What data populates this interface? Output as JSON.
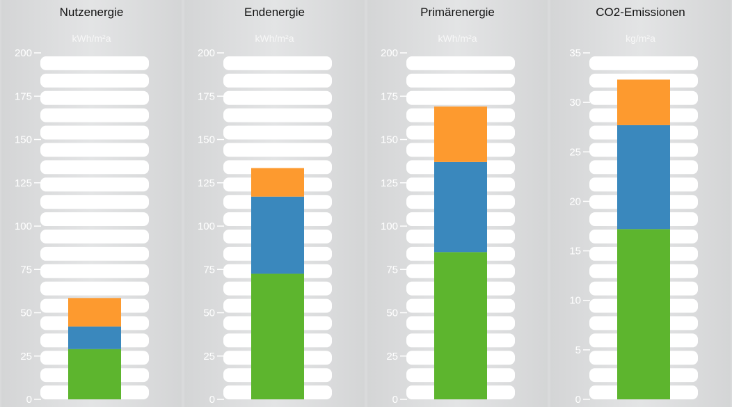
{
  "chart_data": [
    {
      "type": "bar",
      "stacked": true,
      "title": "Nutzenergie",
      "unit": "kWh/m²a",
      "ylim": [
        0,
        200
      ],
      "yticks": [
        "0",
        "25",
        "50",
        "75",
        "100",
        "125",
        "150",
        "175",
        "200"
      ],
      "segments": [
        {
          "value": 29,
          "color": "#5db52e"
        },
        {
          "value": 13,
          "color": "#3a88bd"
        },
        {
          "value": 16.5,
          "color": "#fd9a2f"
        }
      ]
    },
    {
      "type": "bar",
      "stacked": true,
      "title": "Endenergie",
      "unit": "kWh/m²a",
      "ylim": [
        0,
        200
      ],
      "yticks": [
        "0",
        "25",
        "50",
        "75",
        "100",
        "125",
        "150",
        "175",
        "200"
      ],
      "segments": [
        {
          "value": 72.5,
          "color": "#5db52e"
        },
        {
          "value": 44.5,
          "color": "#3a88bd"
        },
        {
          "value": 16.5,
          "color": "#fd9a2f"
        }
      ]
    },
    {
      "type": "bar",
      "stacked": true,
      "title": "Primärenergie",
      "unit": "kWh/m²a",
      "ylim": [
        0,
        200
      ],
      "yticks": [
        "0",
        "25",
        "50",
        "75",
        "100",
        "125",
        "150",
        "175",
        "200"
      ],
      "segments": [
        {
          "value": 85,
          "color": "#5db52e"
        },
        {
          "value": 52,
          "color": "#3a88bd"
        },
        {
          "value": 32,
          "color": "#fd9a2f"
        }
      ]
    },
    {
      "type": "bar",
      "stacked": true,
      "title": "CO2-Emissionen",
      "unit": "kg/m²a",
      "ylim": [
        0,
        35
      ],
      "yticks": [
        "0",
        "5",
        "10",
        "15",
        "20",
        "25",
        "30",
        "35"
      ],
      "segments": [
        {
          "value": 17.2,
          "color": "#5db52e"
        },
        {
          "value": 10.5,
          "color": "#3a88bd"
        },
        {
          "value": 4.6,
          "color": "#fd9a2f"
        }
      ]
    }
  ]
}
